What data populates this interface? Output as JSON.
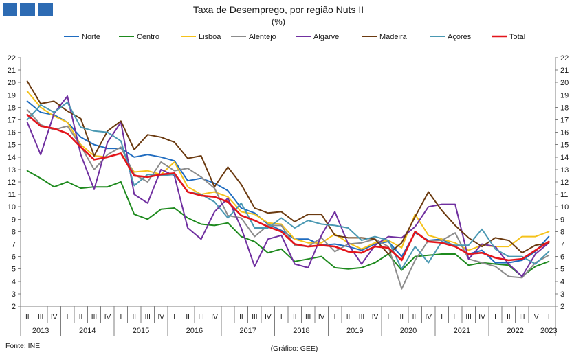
{
  "logo": {
    "icon": "gee-logo-icon",
    "color": "#2d6bb3"
  },
  "chart_data": {
    "type": "line",
    "title": "Taxa de Desemprego, por região Nuts II",
    "subtitle": "(%)",
    "ylim": [
      2,
      22
    ],
    "yticks": [
      2,
      3,
      4,
      5,
      6,
      7,
      8,
      9,
      10,
      11,
      12,
      13,
      14,
      15,
      16,
      17,
      18,
      19,
      20,
      21,
      22
    ],
    "grid": false,
    "legend_position": "top",
    "x_quarters": [
      "II",
      "III",
      "IV",
      "I",
      "II",
      "III",
      "IV",
      "I",
      "II",
      "III",
      "IV",
      "I",
      "II",
      "III",
      "IV",
      "I",
      "II",
      "III",
      "IV",
      "I",
      "II",
      "III",
      "IV",
      "I",
      "II",
      "III",
      "IV",
      "I",
      "II",
      "III",
      "IV",
      "I",
      "II",
      "III",
      "IV",
      "I",
      "II",
      "III",
      "IV",
      "I"
    ],
    "x_years": [
      "2013",
      "2014",
      "2015",
      "2016",
      "2017",
      "2018",
      "2019",
      "2020",
      "2021",
      "2022",
      "2023"
    ],
    "series": [
      {
        "name": "Norte",
        "color": "#1f6cc0",
        "values": [
          18.5,
          17.6,
          17.4,
          16.8,
          15.6,
          15.0,
          14.7,
          14.7,
          14.0,
          14.2,
          14.0,
          13.7,
          12.1,
          12.3,
          11.9,
          11.3,
          9.9,
          9.5,
          8.6,
          8.1,
          7.4,
          7.4,
          6.9,
          7.0,
          6.8,
          6.5,
          7.0,
          7.2,
          6.0,
          7.9,
          7.3,
          7.4,
          6.8,
          6.2,
          6.5,
          5.5,
          5.5,
          5.7,
          6.4,
          7.6
        ]
      },
      {
        "name": "Centro",
        "color": "#1e8a1e",
        "values": [
          12.9,
          12.3,
          11.6,
          12.0,
          11.5,
          11.6,
          11.6,
          12.0,
          9.4,
          9.0,
          9.8,
          9.9,
          9.1,
          8.6,
          8.5,
          8.7,
          7.6,
          7.2,
          6.3,
          6.6,
          5.6,
          5.8,
          6.0,
          5.1,
          5.0,
          5.1,
          5.5,
          6.2,
          4.9,
          6.0,
          6.1,
          6.2,
          6.2,
          5.3,
          5.5,
          5.4,
          5.3,
          4.4,
          5.2,
          5.6
        ]
      },
      {
        "name": "Lisboa",
        "color": "#f5c21b",
        "values": [
          19.3,
          18.0,
          17.3,
          16.8,
          15.0,
          14.1,
          14.0,
          14.3,
          12.8,
          12.9,
          12.6,
          13.6,
          11.6,
          11.0,
          11.2,
          10.8,
          9.6,
          9.4,
          8.7,
          8.6,
          7.4,
          7.1,
          7.1,
          7.8,
          7.1,
          6.6,
          7.1,
          7.3,
          6.7,
          9.4,
          7.7,
          7.4,
          7.1,
          6.5,
          6.9,
          6.8,
          6.8,
          7.6,
          7.6,
          8.0
        ]
      },
      {
        "name": "Alentejo",
        "color": "#8c8c8c",
        "values": [
          17.8,
          16.6,
          16.2,
          16.5,
          14.9,
          13.0,
          14.2,
          14.8,
          12.6,
          12.0,
          13.6,
          12.9,
          13.1,
          12.4,
          11.5,
          9.3,
          9.1,
          7.6,
          8.5,
          8.5,
          6.9,
          6.8,
          7.5,
          6.4,
          7.0,
          7.1,
          7.4,
          6.8,
          3.4,
          5.7,
          7.3,
          7.3,
          7.9,
          5.8,
          5.5,
          5.2,
          4.4,
          4.3,
          5.5,
          6.1
        ]
      },
      {
        "name": "Algarve",
        "color": "#7030a0",
        "values": [
          16.8,
          14.2,
          17.5,
          18.9,
          14.2,
          11.4,
          15.2,
          16.8,
          11.0,
          10.3,
          13.0,
          12.5,
          8.3,
          7.4,
          9.6,
          10.7,
          8.3,
          5.2,
          7.4,
          7.7,
          5.4,
          5.1,
          7.7,
          9.6,
          7.0,
          5.4,
          6.9,
          7.6,
          7.5,
          8.4,
          10.0,
          10.2,
          10.2,
          5.8,
          7.0,
          6.8,
          5.4,
          4.4,
          6.2,
          7.1
        ]
      },
      {
        "name": "Madeira",
        "color": "#6b3a10",
        "values": [
          20.1,
          18.3,
          18.5,
          17.7,
          17.1,
          14.1,
          16.1,
          16.9,
          14.6,
          15.8,
          15.6,
          15.2,
          13.9,
          14.1,
          11.6,
          13.2,
          11.8,
          9.9,
          9.5,
          9.6,
          8.8,
          9.4,
          9.4,
          7.7,
          7.5,
          7.5,
          7.4,
          6.2,
          7.1,
          9.2,
          11.2,
          9.7,
          8.5,
          7.5,
          6.8,
          7.5,
          7.3,
          6.3,
          6.9,
          7.1
        ]
      },
      {
        "name": "Açores",
        "color": "#4a98b2",
        "values": [
          17.0,
          18.2,
          17.6,
          18.4,
          16.4,
          16.1,
          16.0,
          15.3,
          11.7,
          12.6,
          12.5,
          12.6,
          11.2,
          11.0,
          10.4,
          9.1,
          10.3,
          8.3,
          8.3,
          9.1,
          8.3,
          8.9,
          8.6,
          8.5,
          8.3,
          7.3,
          7.6,
          7.3,
          5.0,
          6.8,
          5.5,
          7.2,
          6.9,
          6.9,
          8.2,
          6.6,
          6.0,
          6.0,
          5.4,
          6.4
        ]
      },
      {
        "name": "Total",
        "color": "#e3151b",
        "values": [
          17.4,
          16.5,
          16.3,
          15.9,
          14.8,
          13.8,
          14.0,
          14.3,
          12.5,
          12.4,
          12.6,
          12.7,
          11.2,
          10.9,
          10.8,
          10.4,
          9.3,
          8.9,
          8.4,
          8.0,
          7.0,
          6.8,
          6.9,
          6.8,
          6.4,
          6.3,
          6.8,
          6.7,
          5.7,
          8.0,
          7.2,
          7.1,
          6.8,
          6.2,
          6.3,
          5.9,
          5.7,
          5.8,
          6.5,
          7.2
        ]
      }
    ]
  },
  "footer": {
    "source": "Fonte: INE",
    "credit": "(Gráfico: GEE)"
  }
}
